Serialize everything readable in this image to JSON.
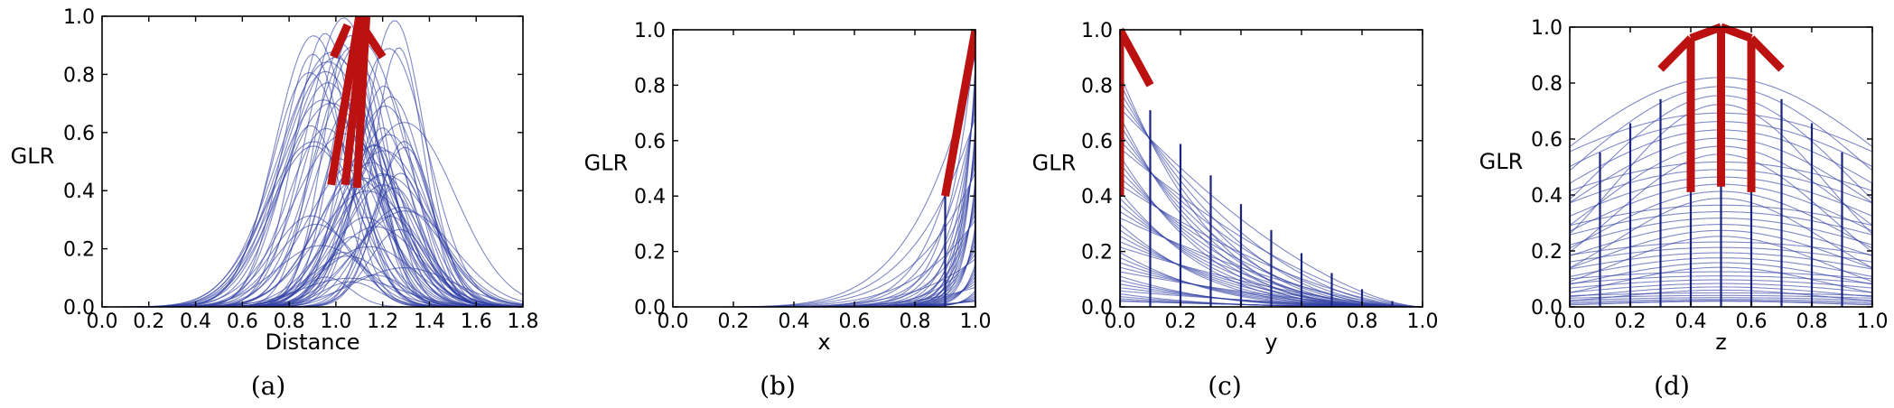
{
  "chart_data": [
    {
      "type": "line",
      "panel": "a",
      "caption": "(a)",
      "xlabel": "Distance",
      "ylabel": "GLR",
      "xlim": [
        0.0,
        1.8
      ],
      "ylim": [
        0.0,
        1.0
      ],
      "xticks": [
        "0.0",
        "0.2",
        "0.4",
        "0.6",
        "0.8",
        "1.0",
        "1.2",
        "1.4",
        "1.6",
        "1.8"
      ],
      "yticks": [
        "0.0",
        "0.2",
        "0.4",
        "0.6",
        "0.8",
        "1.0"
      ],
      "background_curves": "many gaussian-like bumps, peaks between 0.9 and 1.3, heights 0.1-1.0, support 0.5-1.7",
      "highlight": [
        {
          "x0": 0.98,
          "y0": 0.42,
          "x1": 1.1,
          "y1": 1.0
        },
        {
          "x0": 1.04,
          "y0": 0.42,
          "x1": 1.12,
          "y1": 1.0
        },
        {
          "x0": 1.09,
          "y0": 0.41,
          "x1": 1.13,
          "y1": 1.0
        },
        {
          "x0": 1.11,
          "y0": 0.97,
          "x1": 1.2,
          "y1": 0.86
        },
        {
          "x0": 1.05,
          "y0": 0.97,
          "x1": 0.99,
          "y1": 0.86
        }
      ]
    },
    {
      "type": "line",
      "panel": "b",
      "caption": "(b)",
      "xlabel": "x",
      "ylabel": "GLR",
      "xlim": [
        0.0,
        1.0
      ],
      "ylim": [
        0.0,
        1.0
      ],
      "xticks": [
        "0.0",
        "0.2",
        "0.4",
        "0.6",
        "0.8",
        "1.0"
      ],
      "yticks": [
        "0.0",
        "0.2",
        "0.4",
        "0.6",
        "0.8",
        "1.0"
      ],
      "verticals_x": [
        0.9,
        1.0
      ],
      "highlight": [
        {
          "x0": 0.9,
          "y0": 0.4,
          "x1": 1.0,
          "y1": 1.0
        }
      ]
    },
    {
      "type": "line",
      "panel": "c",
      "caption": "(c)",
      "xlabel": "y",
      "ylabel": "GLR",
      "xlim": [
        0.0,
        1.0
      ],
      "ylim": [
        0.0,
        1.0
      ],
      "xticks": [
        "0.0",
        "0.2",
        "0.4",
        "0.6",
        "0.8",
        "1.0"
      ],
      "yticks": [
        "0.0",
        "0.2",
        "0.4",
        "0.6",
        "0.8",
        "1.0"
      ],
      "verticals_x": [
        0.0,
        0.1,
        0.2,
        0.3,
        0.4,
        0.5,
        0.6,
        0.7,
        0.8,
        0.9,
        1.0
      ],
      "highlight": [
        {
          "x0": 0.0,
          "y0": 1.0,
          "x1": 0.1,
          "y1": 0.8
        },
        {
          "x0": 0.0,
          "y0": 0.4,
          "x1": 0.0,
          "y1": 1.0
        }
      ]
    },
    {
      "type": "line",
      "panel": "d",
      "caption": "(d)",
      "xlabel": "z",
      "ylabel": "GLR",
      "xlim": [
        0.0,
        1.0
      ],
      "ylim": [
        0.0,
        1.0
      ],
      "xticks": [
        "0.0",
        "0.2",
        "0.4",
        "0.6",
        "0.8",
        "1.0"
      ],
      "yticks": [
        "0.0",
        "0.2",
        "0.4",
        "0.6",
        "0.8",
        "1.0"
      ],
      "verticals_x": [
        0.0,
        0.1,
        0.2,
        0.3,
        0.4,
        0.5,
        0.6,
        0.7,
        0.8,
        0.9,
        1.0
      ],
      "highlight": [
        {
          "x0": 0.3,
          "y0": 0.85,
          "x1": 0.4,
          "y1": 0.96
        },
        {
          "x0": 0.4,
          "y0": 0.96,
          "x1": 0.5,
          "y1": 1.0
        },
        {
          "x0": 0.5,
          "y0": 1.0,
          "x1": 0.6,
          "y1": 0.96
        },
        {
          "x0": 0.6,
          "y0": 0.96,
          "x1": 0.7,
          "y1": 0.85
        },
        {
          "x0": 0.4,
          "y0": 0.41,
          "x1": 0.4,
          "y1": 0.96
        },
        {
          "x0": 0.5,
          "y0": 0.43,
          "x1": 0.5,
          "y1": 1.0
        },
        {
          "x0": 0.6,
          "y0": 0.41,
          "x1": 0.6,
          "y1": 0.96
        }
      ]
    }
  ],
  "colors": {
    "background_curve": "#2b3aa0",
    "vertical": "#1a237e",
    "highlight": "#bb1111"
  }
}
